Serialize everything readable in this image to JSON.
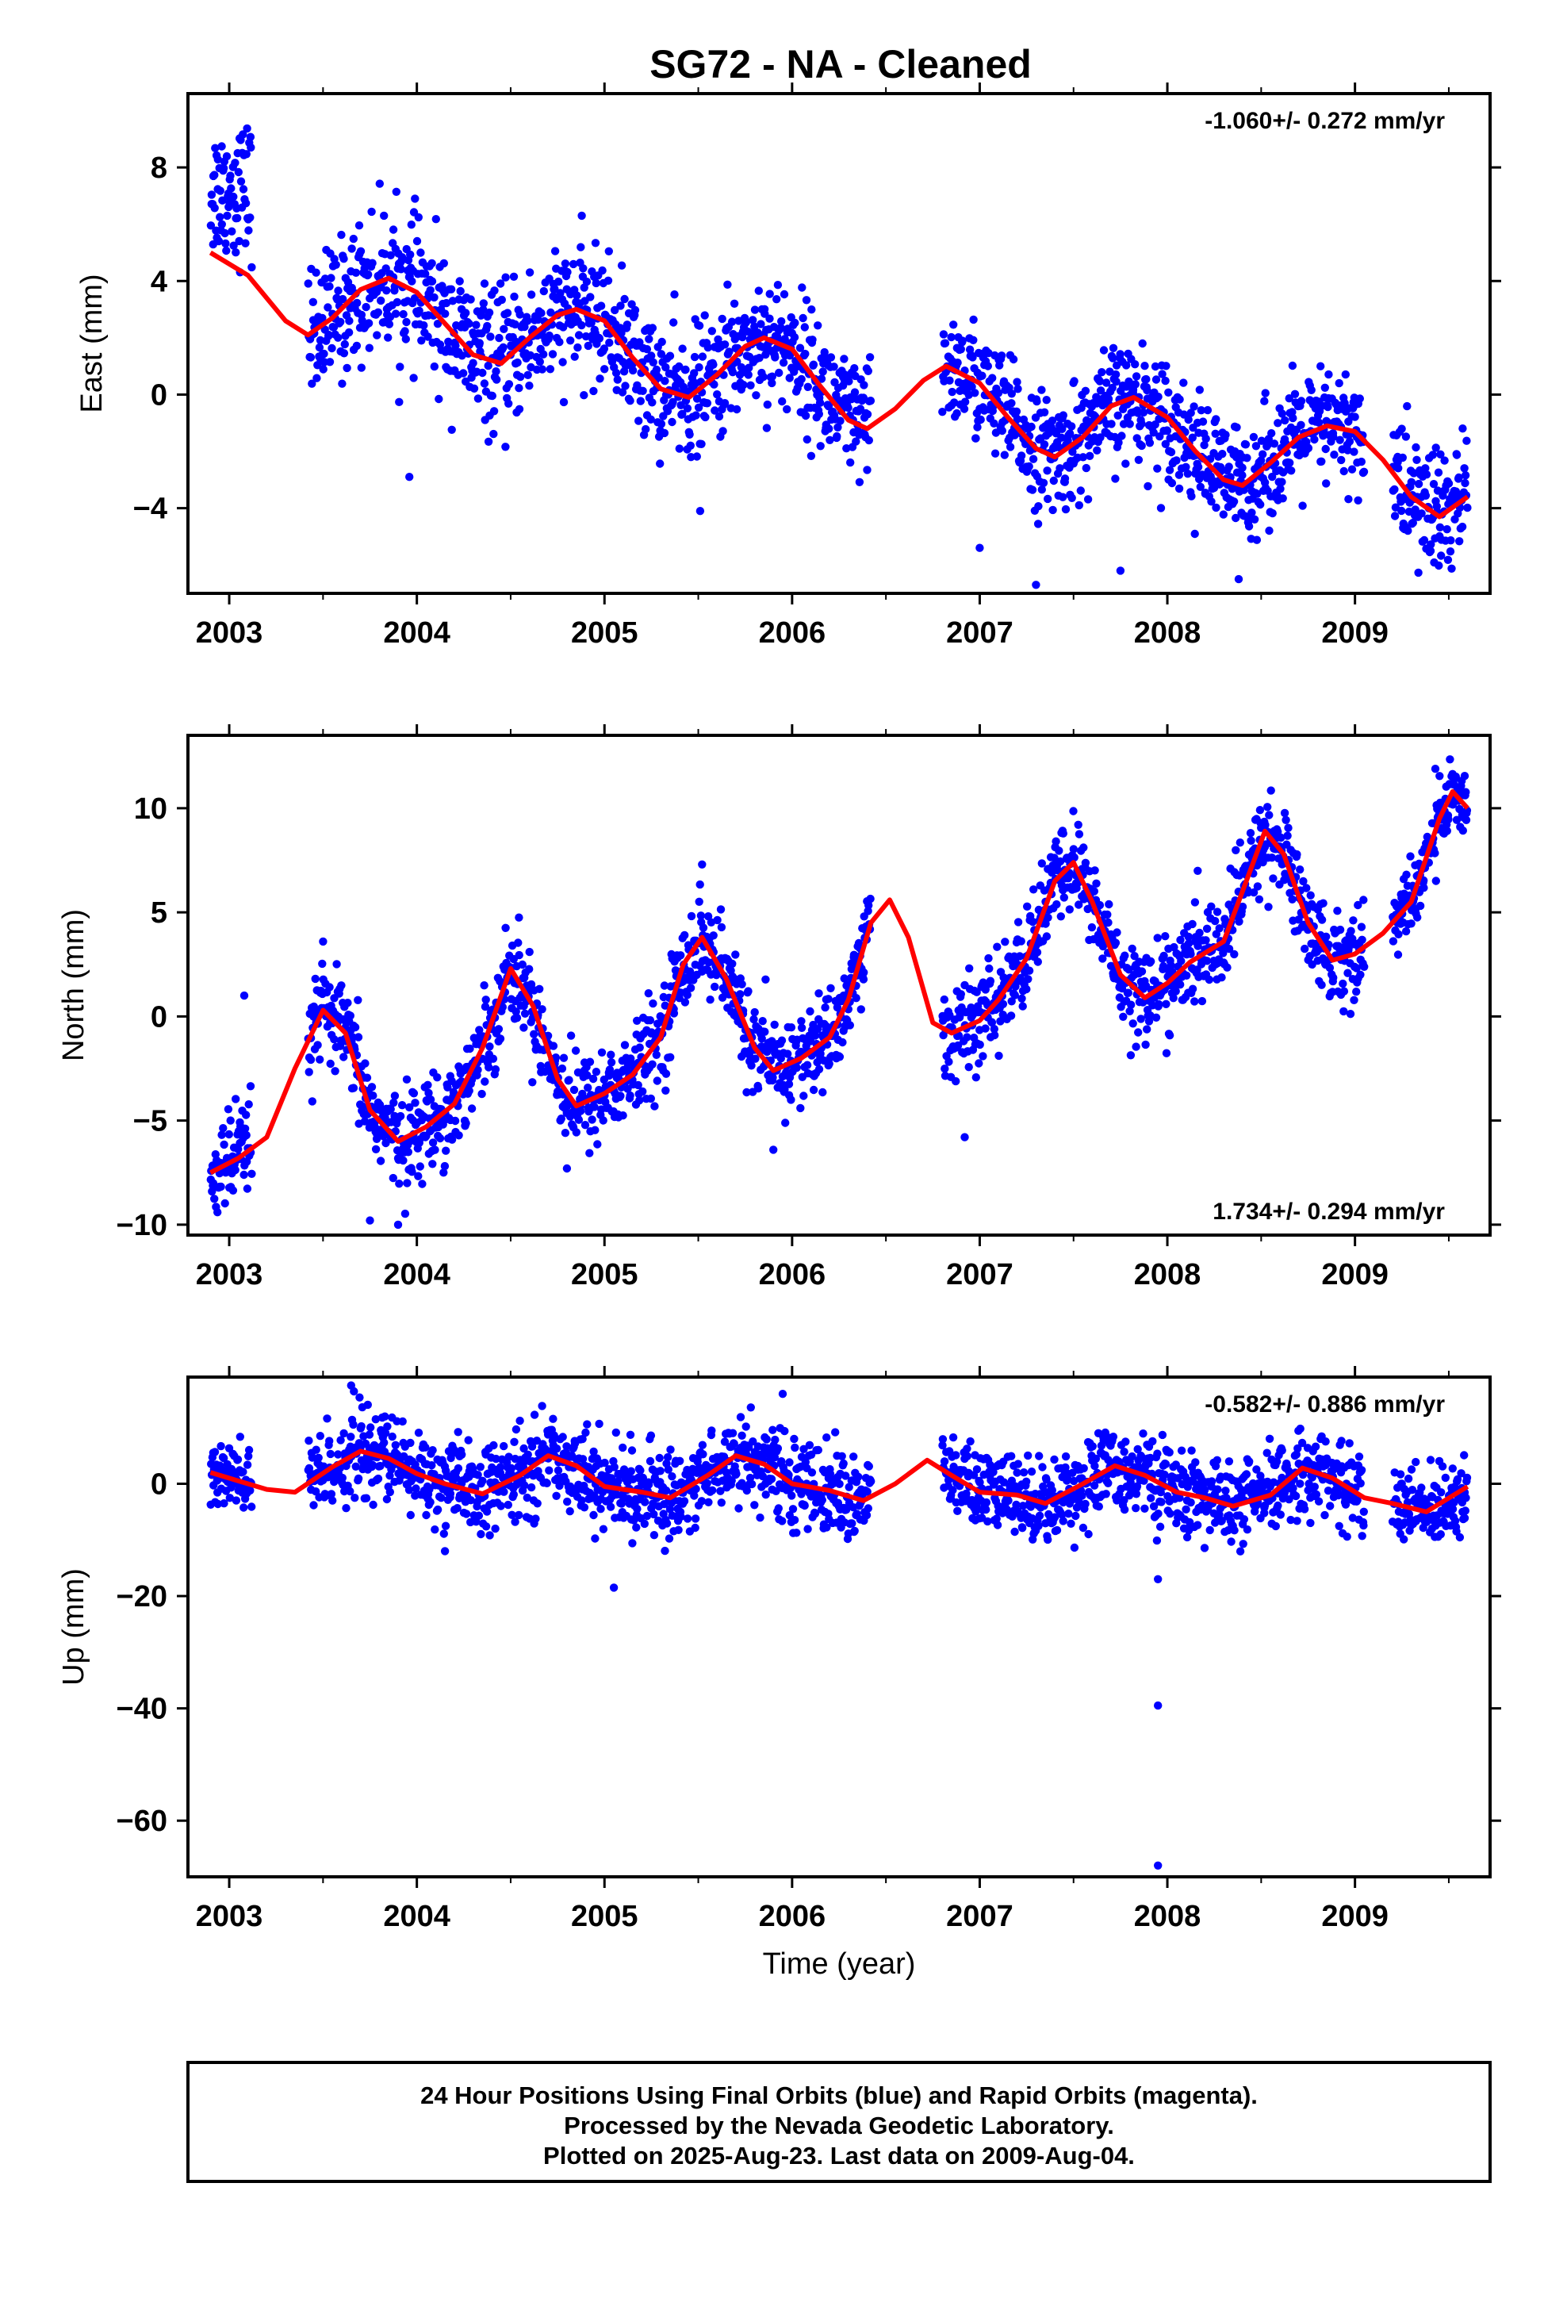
{
  "title": "SG72  - NA - Cleaned",
  "footer": [
    "24 Hour Positions Using Final Orbits (blue) and Rapid Orbits (magenta).",
    "Processed by the Nevada Geodetic Laboratory.",
    "Plotted on 2025-Aug-23. Last data on 2009-Aug-04."
  ],
  "colors": {
    "points": "#0000ff",
    "model": "#ff0000",
    "frame": "#000000"
  },
  "chart_data": [
    {
      "type": "scatter",
      "ylabel": "East (mm)",
      "xlabel": "",
      "rate_label": "-1.060+/- 0.272 mm/yr",
      "rate_position": "top-right",
      "xlim": [
        2002.78,
        2009.72
      ],
      "ylim": [
        -7.0,
        10.6
      ],
      "xticks": [
        2003,
        2004,
        2005,
        2006,
        2007,
        2008,
        2009
      ],
      "xtick_labels": [
        "2003",
        "2004",
        "2005",
        "2006",
        "2007",
        "2008",
        "2009"
      ],
      "yticks": [
        -4,
        0,
        4,
        8
      ],
      "ytick_labels": [
        "−4",
        "0",
        "4",
        "8"
      ],
      "rate_mm_per_yr": -1.06,
      "model": {
        "t": [
          2002.9,
          2003.1,
          2003.3,
          2003.42,
          2003.55,
          2003.7,
          2003.85,
          2004.0,
          2004.15,
          2004.3,
          2004.45,
          2004.6,
          2004.75,
          2004.85,
          2005.0,
          2005.15,
          2005.3,
          2005.45,
          2005.6,
          2005.75,
          2005.85,
          2006.0,
          2006.15,
          2006.3,
          2006.4,
          2006.55,
          2006.7,
          2006.82,
          2007.0,
          2007.15,
          2007.3,
          2007.4,
          2007.55,
          2007.7,
          2007.82,
          2008.0,
          2008.15,
          2008.3,
          2008.4,
          2008.55,
          2008.7,
          2008.85,
          2009.0,
          2009.15,
          2009.3,
          2009.45,
          2009.6
        ],
        "y": [
          5.0,
          4.2,
          2.6,
          2.1,
          2.7,
          3.7,
          4.1,
          3.6,
          2.5,
          1.4,
          1.1,
          2.0,
          2.8,
          3.0,
          2.6,
          1.3,
          0.2,
          -0.1,
          0.7,
          1.7,
          2.0,
          1.6,
          0.3,
          -0.9,
          -1.2,
          -0.5,
          0.5,
          1.0,
          0.4,
          -0.8,
          -1.9,
          -2.2,
          -1.5,
          -0.4,
          -0.1,
          -0.8,
          -2.0,
          -3.0,
          -3.2,
          -2.4,
          -1.5,
          -1.1,
          -1.3,
          -2.3,
          -3.6,
          -4.3,
          -3.6
        ]
      },
      "segments": [
        {
          "t0": 2002.9,
          "t1": 2003.12,
          "mean": 7.2,
          "sd": 1.2
        },
        {
          "t0": 2003.42,
          "t1": 2004.7,
          "mean": null,
          "sd": 1.2
        },
        {
          "t0": 2004.7,
          "t1": 2006.42,
          "mean": null,
          "sd": 1.1
        },
        {
          "t0": 2006.8,
          "t1": 2009.05,
          "mean": null,
          "sd": 1.0
        },
        {
          "t0": 2009.2,
          "t1": 2009.6,
          "mean": null,
          "sd": 1.2
        }
      ],
      "outliers": [
        {
          "t": 2003.96,
          "y": -2.9
        },
        {
          "t": 2005.51,
          "y": -4.1
        },
        {
          "t": 2007.3,
          "y": -6.7
        },
        {
          "t": 2007.75,
          "y": -6.2
        },
        {
          "t": 2008.38,
          "y": -6.5
        },
        {
          "t": 2007.0,
          "y": -5.4
        }
      ]
    },
    {
      "type": "scatter",
      "ylabel": "North (mm)",
      "xlabel": "",
      "rate_label": "1.734+/- 0.294 mm/yr",
      "rate_position": "bottom-right",
      "xlim": [
        2002.78,
        2009.72
      ],
      "ylim": [
        -10.5,
        13.5
      ],
      "xticks": [
        2003,
        2004,
        2005,
        2006,
        2007,
        2008,
        2009
      ],
      "xtick_labels": [
        "2003",
        "2004",
        "2005",
        "2006",
        "2007",
        "2008",
        "2009"
      ],
      "yticks": [
        -10,
        -5,
        0,
        5,
        10
      ],
      "ytick_labels": [
        "−10",
        "−5",
        "0",
        "5",
        "10"
      ],
      "rate_mm_per_yr": 1.734,
      "model": {
        "t": [
          2002.9,
          2003.05,
          2003.2,
          2003.35,
          2003.5,
          2003.62,
          2003.75,
          2003.9,
          2004.05,
          2004.2,
          2004.35,
          2004.5,
          2004.62,
          2004.75,
          2004.85,
          2005.0,
          2005.15,
          2005.3,
          2005.42,
          2005.52,
          2005.65,
          2005.8,
          2005.9,
          2006.05,
          2006.2,
          2006.3,
          2006.42,
          2006.52,
          2006.62,
          2006.75,
          2006.85,
          2007.0,
          2007.1,
          2007.25,
          2007.4,
          2007.5,
          2007.6,
          2007.75,
          2007.88,
          2008.0,
          2008.12,
          2008.3,
          2008.4,
          2008.52,
          2008.62,
          2008.75,
          2008.88,
          2009.0,
          2009.15,
          2009.3,
          2009.45,
          2009.52,
          2009.6
        ],
        "y": [
          -7.5,
          -6.8,
          -5.8,
          -2.5,
          0.3,
          -0.8,
          -4.5,
          -6.0,
          -5.3,
          -4.2,
          -1.5,
          2.3,
          0.5,
          -3.0,
          -4.3,
          -3.7,
          -2.8,
          -1.0,
          2.5,
          3.8,
          1.8,
          -1.5,
          -2.6,
          -2.0,
          -1.0,
          0.8,
          4.5,
          5.6,
          3.8,
          -0.3,
          -0.8,
          -0.2,
          0.8,
          2.8,
          6.5,
          7.4,
          5.5,
          2.0,
          0.9,
          1.6,
          2.6,
          3.6,
          6.0,
          8.9,
          7.8,
          4.5,
          2.7,
          3.0,
          4.0,
          5.5,
          9.5,
          10.8,
          10.0
        ]
      },
      "segments": [
        {
          "t0": 2002.9,
          "t1": 2003.12,
          "mean": null,
          "sd": 1.2
        },
        {
          "t0": 2003.42,
          "t1": 2004.7,
          "mean": null,
          "sd": 1.1
        },
        {
          "t0": 2004.7,
          "t1": 2006.42,
          "mean": null,
          "sd": 1.1
        },
        {
          "t0": 2006.8,
          "t1": 2009.05,
          "mean": null,
          "sd": 1.1
        },
        {
          "t0": 2009.2,
          "t1": 2009.6,
          "mean": null,
          "sd": 0.9
        }
      ],
      "outliers": [
        {
          "t": 2003.08,
          "y": 1.0
        },
        {
          "t": 2003.5,
          "y": 3.6
        },
        {
          "t": 2003.75,
          "y": -9.8
        },
        {
          "t": 2003.9,
          "y": -10.0
        },
        {
          "t": 2004.8,
          "y": -7.3
        },
        {
          "t": 2005.9,
          "y": -6.4
        },
        {
          "t": 2005.52,
          "y": 7.3
        },
        {
          "t": 2006.92,
          "y": -5.8
        }
      ]
    },
    {
      "type": "scatter",
      "ylabel": "Up (mm)",
      "xlabel": "Time (year)",
      "rate_label": "-0.582+/- 0.886 mm/yr",
      "rate_position": "top-right",
      "xlim": [
        2002.78,
        2009.72
      ],
      "ylim": [
        -70,
        19
      ],
      "xticks": [
        2003,
        2004,
        2005,
        2006,
        2007,
        2008,
        2009
      ],
      "xtick_labels": [
        "2003",
        "2004",
        "2005",
        "2006",
        "2007",
        "2008",
        "2009"
      ],
      "yticks": [
        -60,
        -40,
        -20,
        0
      ],
      "ytick_labels": [
        "−60",
        "−40",
        "−20",
        "0"
      ],
      "rate_mm_per_yr": -0.582,
      "model": {
        "t": [
          2002.9,
          2003.05,
          2003.2,
          2003.35,
          2003.55,
          2003.7,
          2003.85,
          2004.0,
          2004.15,
          2004.35,
          2004.55,
          2004.7,
          2004.85,
          2005.0,
          2005.2,
          2005.35,
          2005.55,
          2005.7,
          2005.85,
          2006.0,
          2006.2,
          2006.38,
          2006.55,
          2006.72,
          2006.85,
          2007.0,
          2007.2,
          2007.35,
          2007.55,
          2007.72,
          2007.88,
          2008.05,
          2008.2,
          2008.35,
          2008.55,
          2008.72,
          2008.88,
          2009.05,
          2009.2,
          2009.38,
          2009.6
        ],
        "y": [
          2.0,
          0.5,
          -1.0,
          -1.5,
          3.0,
          5.8,
          4.5,
          1.8,
          0.0,
          -1.8,
          1.5,
          5.0,
          3.2,
          -0.5,
          -1.5,
          -2.5,
          1.5,
          5.0,
          3.5,
          0.0,
          -1.2,
          -3.0,
          0.0,
          4.2,
          1.5,
          -1.5,
          -2.0,
          -3.5,
          0.0,
          3.2,
          1.5,
          -1.5,
          -2.5,
          -4.0,
          -2.0,
          2.8,
          1.0,
          -2.5,
          -3.5,
          -5.0,
          -0.5
        ]
      },
      "segments": [
        {
          "t0": 2002.9,
          "t1": 2003.12,
          "mean": null,
          "sd": 3.5
        },
        {
          "t0": 2003.42,
          "t1": 2004.7,
          "mean": null,
          "sd": 3.8
        },
        {
          "t0": 2004.7,
          "t1": 2006.42,
          "mean": null,
          "sd": 3.8
        },
        {
          "t0": 2006.8,
          "t1": 2009.05,
          "mean": null,
          "sd": 3.6
        },
        {
          "t0": 2009.2,
          "t1": 2009.6,
          "mean": null,
          "sd": 3.5
        }
      ],
      "outliers": [
        {
          "t": 2007.95,
          "y": -39.5
        },
        {
          "t": 2007.95,
          "y": -68.0
        },
        {
          "t": 2005.05,
          "y": -18.5
        },
        {
          "t": 2003.65,
          "y": 17.5
        },
        {
          "t": 2005.95,
          "y": 16.0
        },
        {
          "t": 2007.95,
          "y": -17.0
        },
        {
          "t": 2004.15,
          "y": -12.0
        }
      ]
    }
  ]
}
